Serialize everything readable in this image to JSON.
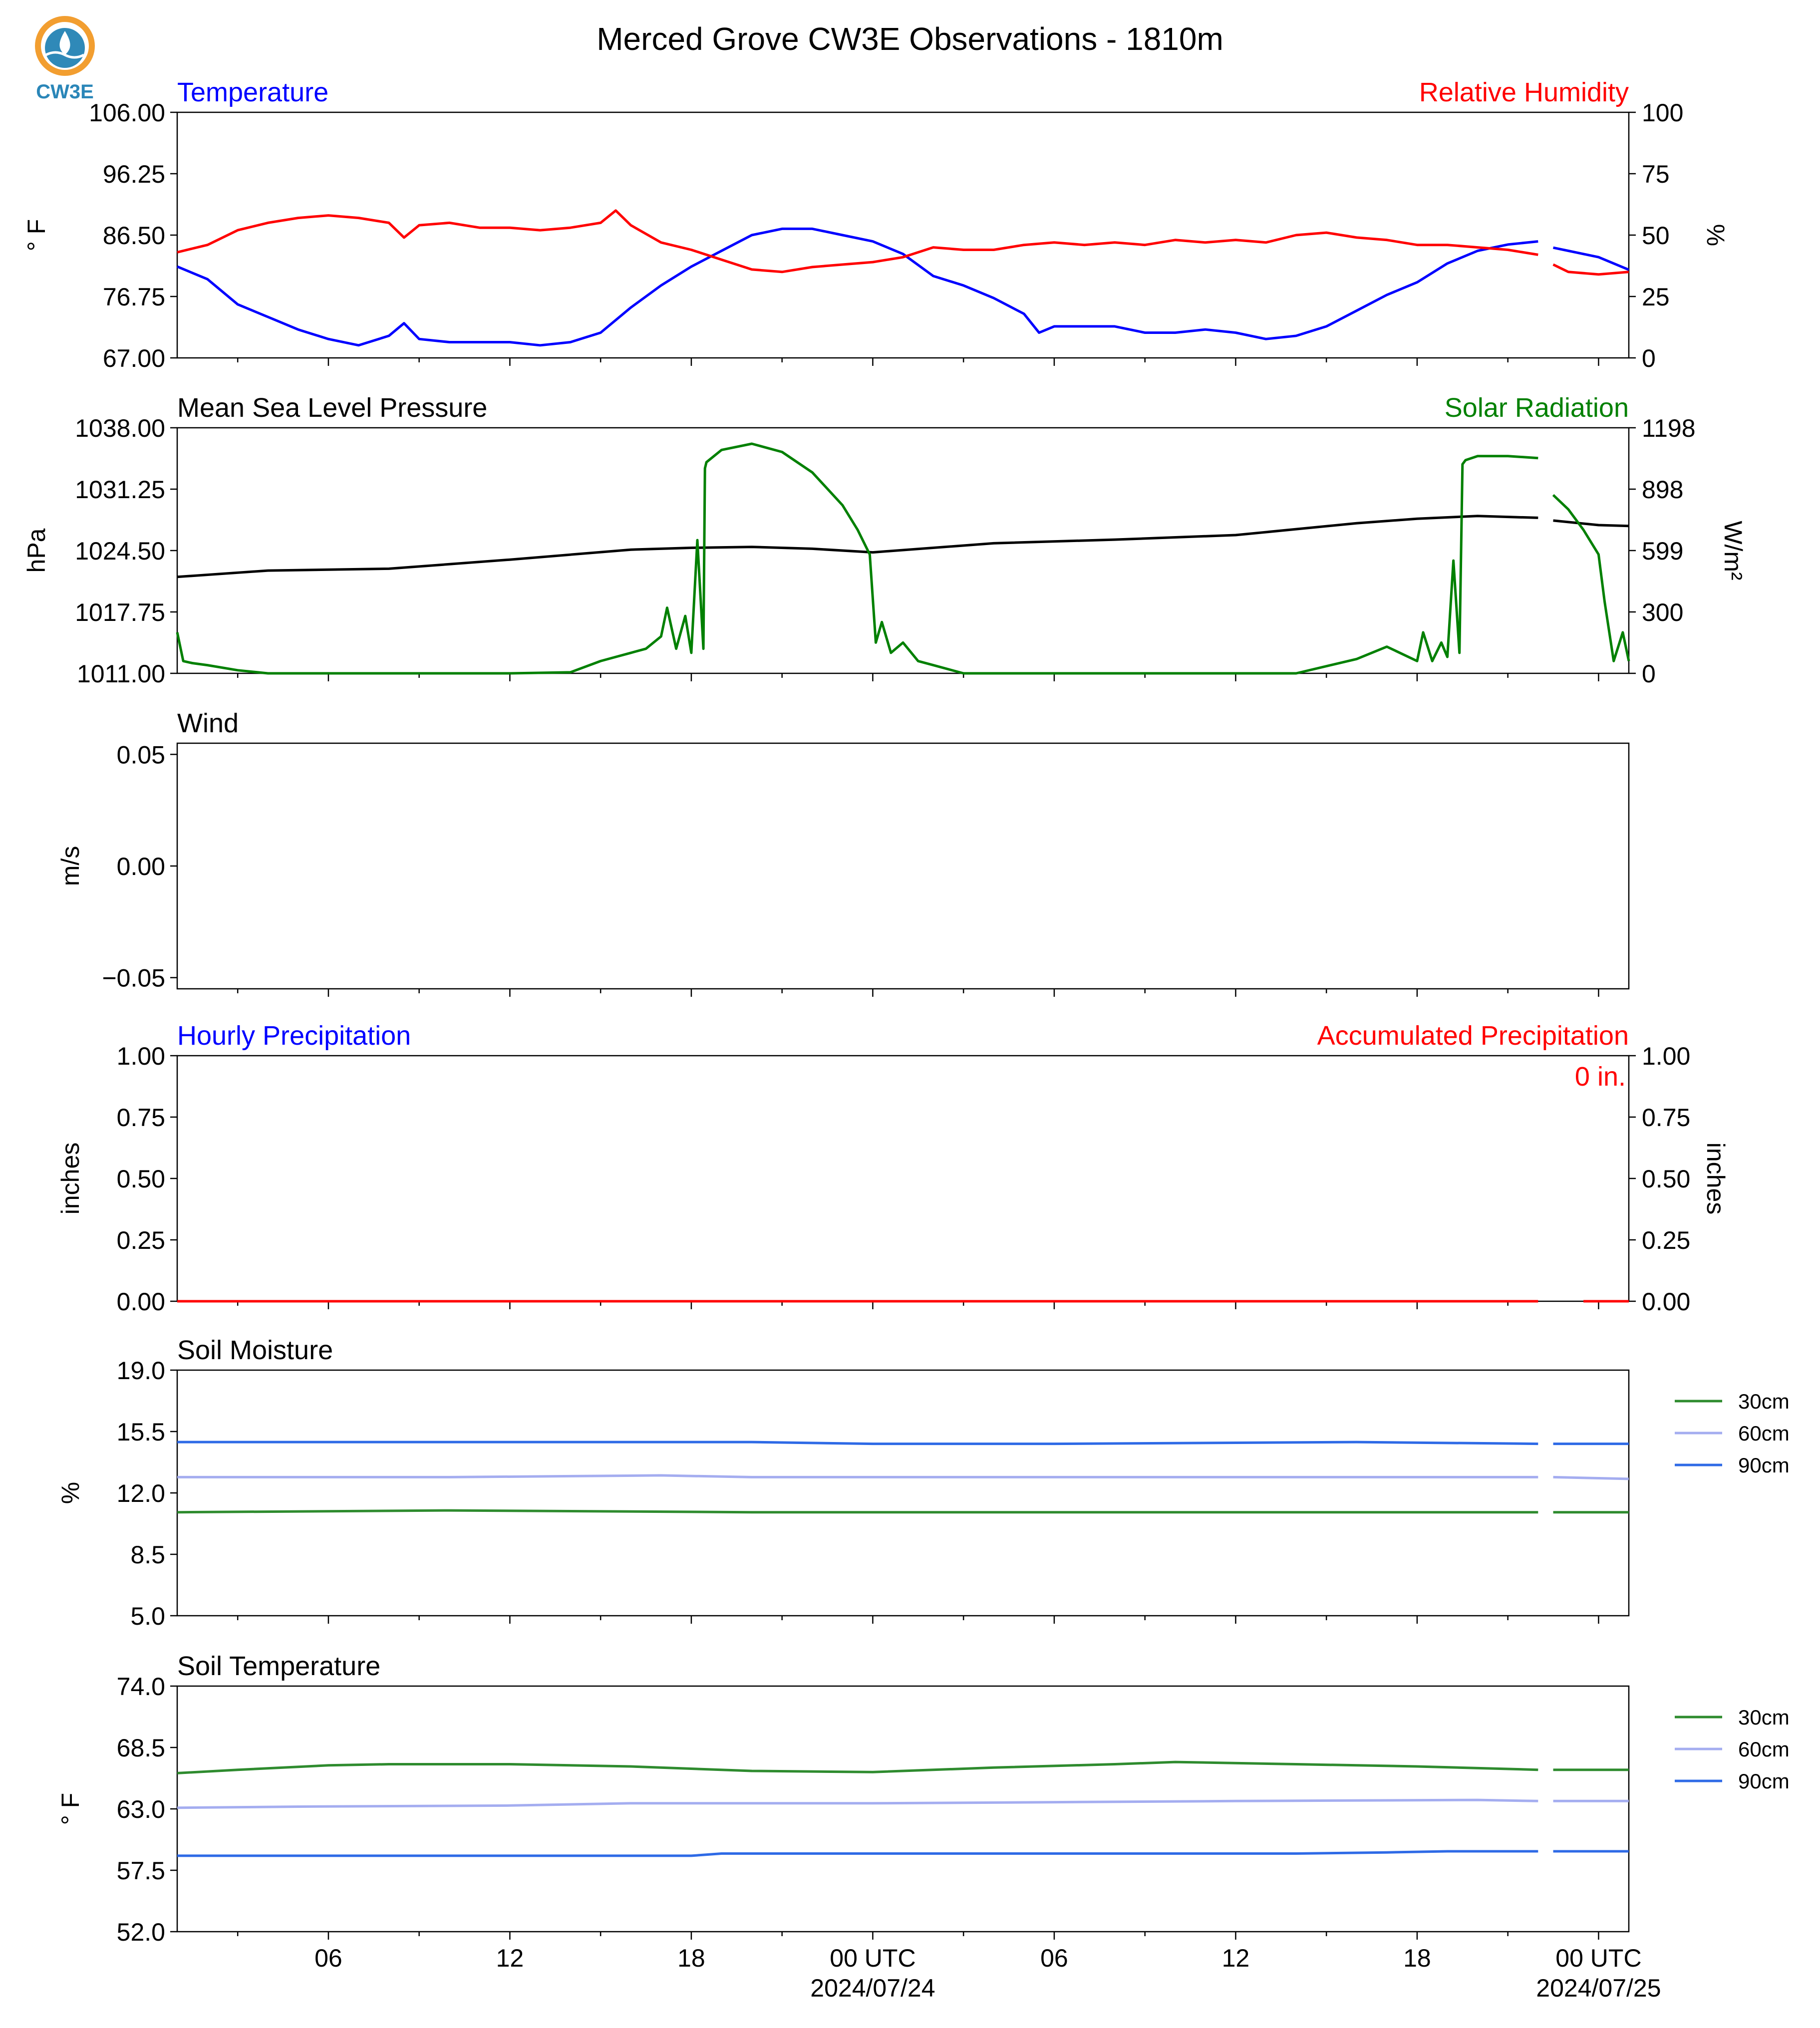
{
  "figure": {
    "title": "Merced Grove CW3E Observations - 1810m",
    "logo_text": "CW3E"
  },
  "x_axis": {
    "tick_labels": [
      "06",
      "12",
      "18",
      "00 UTC",
      "06",
      "12",
      "18",
      "00 UTC"
    ],
    "tick_hours": [
      6,
      12,
      18,
      24,
      30,
      36,
      42,
      48
    ],
    "date_labels": [
      "2024/07/24",
      "2024/07/25"
    ],
    "date_label_hours": [
      24,
      48
    ],
    "range_hours": [
      1,
      49
    ]
  },
  "colors": {
    "temperature": "#0000ff",
    "relative_humidity": "#ff0000",
    "pressure": "#000000",
    "solar": "#008000",
    "soil_30cm": "#2e8b2e",
    "soil_60cm": "#a4adf0",
    "soil_90cm": "#2e6ae6",
    "accum": "#ff0000",
    "hourly": "#0000ff"
  },
  "chart_data": [
    {
      "type": "line",
      "panel": "temperature_rh",
      "left_title": "Temperature",
      "right_title": "Relative Humidity",
      "ylabel": "° F",
      "ylabel_right": "%",
      "ylim": [
        67.0,
        106.0
      ],
      "ylim_right": [
        0,
        100
      ],
      "yticks": [
        "106.00",
        "96.25",
        "86.50",
        "76.75",
        "67.00"
      ],
      "yticks_right": [
        "100",
        "75",
        "50",
        "25",
        "0"
      ],
      "series": [
        {
          "name": "Temperature",
          "axis": "left",
          "x": [
            1,
            2,
            3,
            4,
            5,
            6,
            7,
            8,
            8.5,
            9,
            10,
            11,
            12,
            13,
            14,
            15,
            16,
            17,
            18,
            19,
            20,
            21,
            22,
            23,
            24,
            25,
            26,
            27,
            28,
            29,
            29.5,
            30,
            31,
            32,
            33,
            34,
            35,
            36,
            37,
            38,
            39,
            40,
            41,
            42,
            43,
            44,
            45,
            46,
            null,
            46.5,
            47,
            48,
            49
          ],
          "values": [
            81.5,
            79.5,
            75.5,
            73.5,
            71.5,
            70.0,
            69.0,
            70.5,
            72.5,
            70.0,
            69.5,
            69.5,
            69.5,
            69.0,
            69.5,
            71.0,
            75.0,
            78.5,
            81.5,
            84.0,
            86.5,
            87.5,
            87.5,
            86.5,
            85.5,
            83.5,
            80.0,
            78.5,
            76.5,
            74.0,
            71.0,
            72.0,
            72.0,
            72.0,
            71.0,
            71.0,
            71.5,
            71.0,
            70.0,
            70.5,
            72.0,
            74.5,
            77.0,
            79.0,
            82.0,
            84.0,
            85.0,
            85.5,
            null,
            84.5,
            84.0,
            83.0,
            81.0
          ]
        },
        {
          "name": "Relative Humidity",
          "axis": "right",
          "x": [
            1,
            2,
            3,
            4,
            5,
            6,
            7,
            8,
            8.5,
            9,
            10,
            11,
            12,
            13,
            14,
            15,
            15.5,
            16,
            17,
            18,
            19,
            20,
            21,
            22,
            23,
            24,
            25,
            26,
            27,
            28,
            29,
            30,
            31,
            32,
            33,
            34,
            35,
            36,
            37,
            38,
            39,
            40,
            41,
            42,
            43,
            44,
            45,
            46,
            null,
            46.5,
            47,
            48,
            49
          ],
          "values": [
            43,
            46,
            52,
            55,
            57,
            58,
            57,
            55,
            49,
            54,
            55,
            53,
            53,
            52,
            53,
            55,
            60,
            54,
            47,
            44,
            40,
            36,
            35,
            37,
            38,
            39,
            41,
            45,
            44,
            44,
            46,
            47,
            46,
            47,
            46,
            48,
            47,
            48,
            47,
            50,
            51,
            49,
            48,
            46,
            46,
            45,
            44,
            42,
            null,
            38,
            35,
            34,
            35
          ]
        }
      ]
    },
    {
      "type": "line",
      "panel": "pressure_solar",
      "left_title": "Mean Sea Level Pressure",
      "right_title": "Solar Radiation",
      "ylabel": "hPa",
      "ylabel_right": "W/m²",
      "ylim": [
        1011.0,
        1038.0
      ],
      "ylim_right": [
        0,
        1198
      ],
      "yticks": [
        "1038.00",
        "1031.25",
        "1024.50",
        "1017.75",
        "1011.00"
      ],
      "yticks_right": [
        "1198",
        "898",
        "599",
        "300",
        "0"
      ],
      "series": [
        {
          "name": "Mean Sea Level Pressure",
          "axis": "left",
          "x": [
            1,
            4,
            8,
            12,
            16,
            18,
            20,
            22,
            24,
            28,
            32,
            36,
            40,
            42,
            44,
            46,
            null,
            46.5,
            48,
            49
          ],
          "values": [
            1021.6,
            1022.3,
            1022.5,
            1023.5,
            1024.6,
            1024.8,
            1024.9,
            1024.7,
            1024.3,
            1025.3,
            1025.7,
            1026.2,
            1027.5,
            1028.0,
            1028.3,
            1028.1,
            null,
            1027.8,
            1027.3,
            1027.2
          ]
        },
        {
          "name": "Solar Radiation",
          "axis": "right",
          "x": [
            1,
            1.2,
            1.5,
            2,
            3,
            4,
            8,
            12,
            14,
            15,
            15.5,
            16,
            16.5,
            17,
            17.2,
            17.5,
            17.8,
            18,
            18.2,
            18.4,
            18.45,
            18.5,
            19,
            20,
            21,
            22,
            23,
            23.5,
            23.9,
            24.1,
            24.3,
            24.6,
            25,
            25.5,
            26,
            27,
            28,
            30,
            32,
            34,
            36,
            38,
            40,
            41,
            42,
            42.2,
            42.5,
            42.8,
            43,
            43.2,
            43.4,
            43.5,
            43.6,
            44,
            45,
            46,
            null,
            46.5,
            47,
            47.5,
            48,
            48.2,
            48.5,
            48.8,
            49
          ],
          "values": [
            200,
            60,
            50,
            40,
            15,
            0,
            0,
            0,
            5,
            60,
            80,
            100,
            120,
            180,
            320,
            120,
            280,
            100,
            650,
            120,
            1000,
            1030,
            1090,
            1120,
            1080,
            980,
            820,
            700,
            580,
            150,
            250,
            100,
            150,
            60,
            40,
            0,
            0,
            0,
            0,
            0,
            0,
            0,
            70,
            130,
            60,
            200,
            60,
            150,
            80,
            550,
            100,
            1020,
            1040,
            1060,
            1060,
            1050,
            null,
            870,
            800,
            700,
            580,
            350,
            60,
            200,
            60
          ]
        }
      ]
    },
    {
      "type": "line",
      "panel": "wind",
      "left_title": "Wind",
      "ylabel": "m/s",
      "ylim": [
        -0.055,
        0.055
      ],
      "yticks": [
        "0.05",
        "0.00",
        "−0.05"
      ],
      "series": []
    },
    {
      "type": "line",
      "panel": "precipitation",
      "left_title": "Hourly Precipitation",
      "right_title": "Accumulated Precipitation",
      "annotation": "0 in.",
      "ylabel": "inches",
      "ylabel_right": "inches",
      "ylim": [
        0.0,
        1.0
      ],
      "ylim_right": [
        0.0,
        1.0
      ],
      "yticks": [
        "1.00",
        "0.75",
        "0.50",
        "0.25",
        "0.00"
      ],
      "yticks_right": [
        "1.00",
        "0.75",
        "0.50",
        "0.25",
        "0.00"
      ],
      "series": [
        {
          "name": "Accumulated Precipitation",
          "axis": "right",
          "x": [
            1,
            46,
            null,
            47.5,
            49
          ],
          "values": [
            0,
            0,
            null,
            0,
            0
          ]
        }
      ]
    },
    {
      "type": "line",
      "panel": "soil_moisture",
      "left_title": "Soil Moisture",
      "ylabel": "%",
      "ylim": [
        5.0,
        19.0
      ],
      "yticks": [
        "19.0",
        "15.5",
        "12.0",
        "8.5",
        "5.0"
      ],
      "legend": [
        "30cm",
        "60cm",
        "90cm"
      ],
      "legend_placement": "right outside",
      "series": [
        {
          "name": "30cm",
          "x": [
            1,
            10,
            20,
            30,
            40,
            46,
            null,
            46.5,
            49
          ],
          "values": [
            10.9,
            11.0,
            10.9,
            10.9,
            10.9,
            10.9,
            null,
            10.9,
            10.9
          ]
        },
        {
          "name": "60cm",
          "x": [
            1,
            10,
            17,
            20,
            30,
            40,
            46,
            null,
            46.5,
            49
          ],
          "values": [
            12.9,
            12.9,
            13.0,
            12.9,
            12.9,
            12.9,
            12.9,
            null,
            12.9,
            12.8
          ]
        },
        {
          "name": "90cm",
          "x": [
            1,
            10,
            20,
            24,
            30,
            40,
            46,
            null,
            46.5,
            49
          ],
          "values": [
            14.9,
            14.9,
            14.9,
            14.8,
            14.8,
            14.9,
            14.8,
            null,
            14.8,
            14.8
          ]
        }
      ]
    },
    {
      "type": "line",
      "panel": "soil_temperature",
      "left_title": "Soil Temperature",
      "ylabel": "° F",
      "ylim": [
        52.0,
        74.0
      ],
      "yticks": [
        "74.0",
        "68.5",
        "63.0",
        "57.5",
        "52.0"
      ],
      "legend": [
        "30cm",
        "60cm",
        "90cm"
      ],
      "legend_placement": "right outside",
      "series": [
        {
          "name": "30cm",
          "x": [
            1,
            3,
            6,
            8,
            12,
            16,
            20,
            24,
            28,
            32,
            34,
            38,
            42,
            46,
            null,
            46.5,
            49
          ],
          "values": [
            66.2,
            66.5,
            66.9,
            67.0,
            67.0,
            66.8,
            66.4,
            66.3,
            66.7,
            67.0,
            67.2,
            67.0,
            66.8,
            66.5,
            null,
            66.5,
            66.5
          ]
        },
        {
          "name": "60cm",
          "x": [
            1,
            5,
            12,
            16,
            24,
            30,
            36,
            44,
            46,
            null,
            46.5,
            49
          ],
          "values": [
            63.1,
            63.2,
            63.3,
            63.5,
            63.5,
            63.6,
            63.7,
            63.8,
            63.7,
            null,
            63.7,
            63.7
          ]
        },
        {
          "name": "90cm",
          "x": [
            1,
            10,
            18,
            19,
            30,
            38,
            41,
            43,
            46,
            null,
            46.5,
            49
          ],
          "values": [
            58.8,
            58.8,
            58.8,
            59.0,
            59.0,
            59.0,
            59.1,
            59.2,
            59.2,
            null,
            59.2,
            59.2
          ]
        }
      ]
    }
  ]
}
